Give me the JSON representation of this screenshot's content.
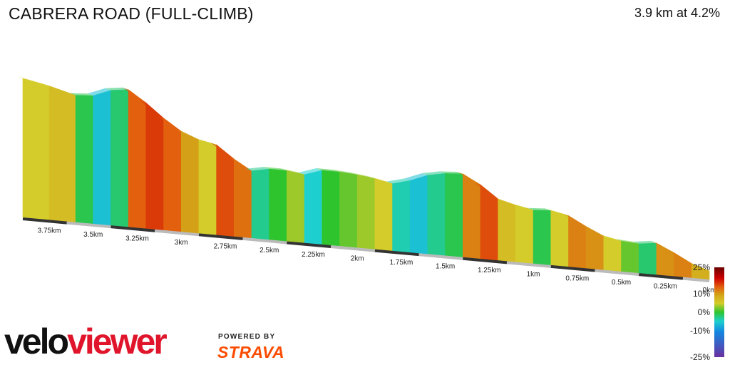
{
  "header": {
    "title": "CABRERA ROAD (FULL-CLIMB)",
    "summary": "3.9 km at 4.2%"
  },
  "branding": {
    "logo_part1": "velo",
    "logo_part2": "viewer",
    "powered_by": "POWERED BY",
    "strava": "STRAVA"
  },
  "chart_data": {
    "type": "area",
    "x_unit": "km",
    "x_direction": "descending-left-to-right",
    "distance_ticks": [
      "3.75km",
      "3.5km",
      "3.25km",
      "3km",
      "2.75km",
      "2.5km",
      "2.25km",
      "2km",
      "1.75km",
      "1.5km",
      "1.25km",
      "1km",
      "0.75km",
      "0.5km",
      "0.25km",
      "0km"
    ],
    "profile_distance_km": [
      3.9,
      3.75,
      3.6,
      3.5,
      3.4,
      3.3,
      3.2,
      3.1,
      3.0,
      2.9,
      2.8,
      2.7,
      2.6,
      2.5,
      2.4,
      2.3,
      2.2,
      2.1,
      2.0,
      1.9,
      1.8,
      1.7,
      1.6,
      1.5,
      1.4,
      1.3,
      1.2,
      1.1,
      1.0,
      0.9,
      0.8,
      0.7,
      0.6,
      0.5,
      0.4,
      0.3,
      0.2,
      0.1,
      0.0
    ],
    "gradient_percent": [
      3.0,
      4.0,
      -1.0,
      -6.0,
      -2.0,
      10.0,
      12.0,
      10.0,
      6.0,
      3.0,
      11.0,
      9.0,
      -3.0,
      0.0,
      2.0,
      -5.0,
      0.0,
      1.0,
      2.0,
      3.0,
      -4.0,
      -6.0,
      -3.0,
      -1.0,
      8.0,
      11.0,
      4.0,
      3.0,
      -1.0,
      3.0,
      8.0,
      7.0,
      3.0,
      1.0,
      -2.0,
      7.0,
      8.0,
      5.0,
      5.0
    ],
    "color_scale": {
      "ticks": [
        "25%",
        "10%",
        "0%",
        "-10%",
        "-25%"
      ],
      "stops": [
        {
          "value": 25,
          "color": "#6b0000"
        },
        {
          "value": 15,
          "color": "#cc0000"
        },
        {
          "value": 10,
          "color": "#e2600e"
        },
        {
          "value": 6,
          "color": "#d4a017"
        },
        {
          "value": 3,
          "color": "#d4cc2a"
        },
        {
          "value": 0,
          "color": "#2ec42e"
        },
        {
          "value": -5,
          "color": "#1ecfd0"
        },
        {
          "value": -10,
          "color": "#1486e0"
        },
        {
          "value": -25,
          "color": "#6b2fa0"
        }
      ]
    }
  }
}
